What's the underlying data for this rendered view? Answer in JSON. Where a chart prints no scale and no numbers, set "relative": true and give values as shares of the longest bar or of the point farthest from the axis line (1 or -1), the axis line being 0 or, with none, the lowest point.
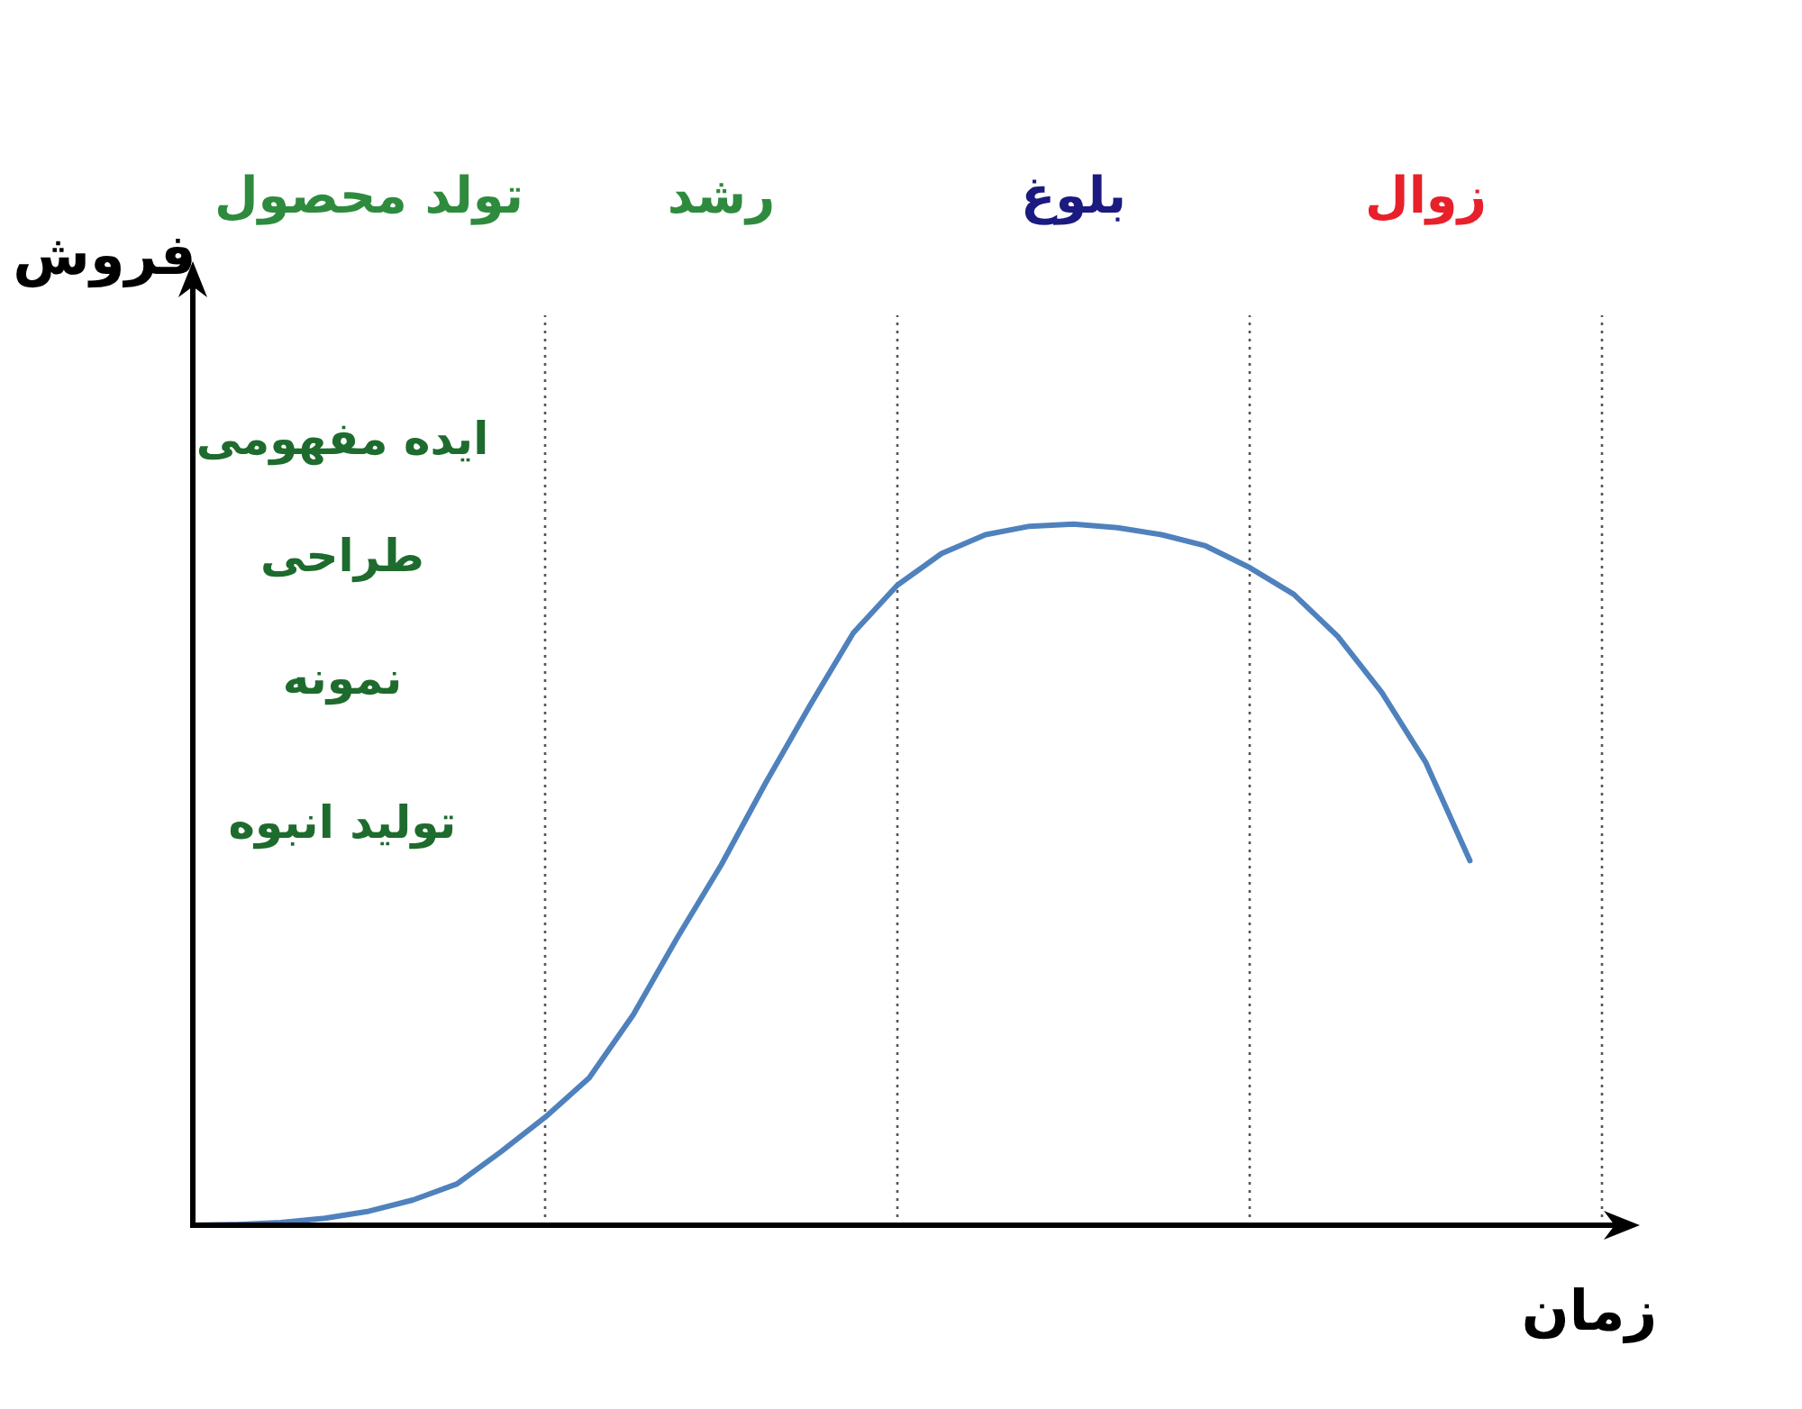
{
  "chart_data": {
    "type": "line",
    "relative": true,
    "grid": "x",
    "xlabel": "زمان",
    "ylabel": "فروش",
    "categories": [
      null,
      null,
      null,
      null,
      null,
      null,
      null,
      null,
      null,
      null,
      null,
      null,
      null,
      null,
      null,
      null,
      null,
      null,
      null,
      null,
      null,
      null,
      null,
      null,
      null,
      null,
      null,
      null,
      null,
      null
    ],
    "values": [
      0,
      0.001,
      0.004,
      0.01,
      0.02,
      0.036,
      0.059,
      0.105,
      0.154,
      0.21,
      0.3,
      0.41,
      0.514,
      0.63,
      0.74,
      0.845,
      0.913,
      0.958,
      0.985,
      0.997,
      1.0,
      0.995,
      0.985,
      0.969,
      0.938,
      0.9,
      0.84,
      0.76,
      0.66,
      0.52
    ],
    "color": "#4f81bd",
    "annotations": [
      "تولد محصول",
      "رشد",
      "بلوغ",
      "زوال",
      "ایده مفهومی",
      "طراحی",
      "نمونه",
      "تولید انبوه"
    ]
  }
}
